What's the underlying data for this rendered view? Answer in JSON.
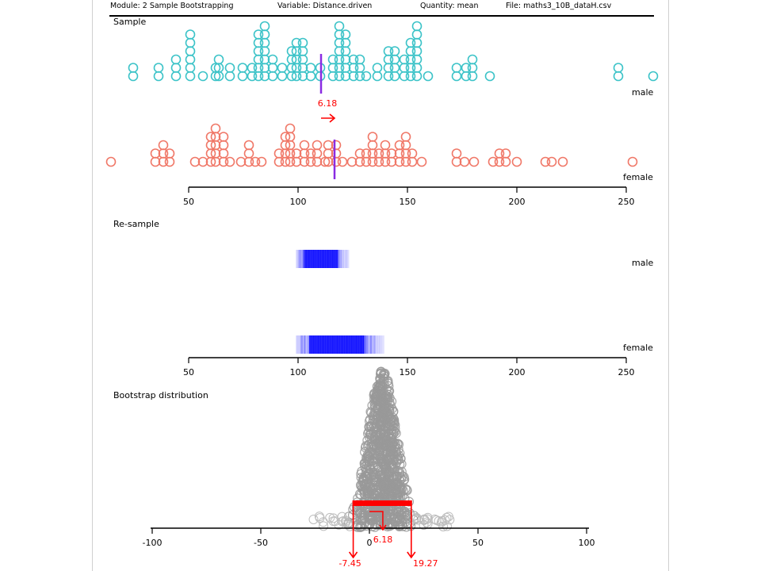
{
  "header": {
    "module": "Module: 2 Sample Bootstrapping",
    "variable": "Variable: Distance.driven",
    "quantity": "Quantity: mean",
    "file": "File: maths3_10B_dataH.csv"
  },
  "sample": {
    "title": "Sample",
    "groups": [
      "male",
      "female"
    ],
    "diff_label": "6.18",
    "male_mean": 111,
    "female_mean": 117,
    "colors": {
      "male": "#3cc3c8",
      "female": "#f07868",
      "mean": "#8a2be2",
      "arrow": "#ff0000"
    }
  },
  "resample": {
    "title": "Re-sample",
    "groups": [
      "male",
      "female"
    ],
    "male_range": [
      99,
      123
    ],
    "female_range": [
      99,
      139
    ],
    "color": "#0000ff"
  },
  "bootstrap": {
    "title": "Bootstrap distribution",
    "ci_lower_label": "-7.45",
    "ci_upper_label": "19.27",
    "observed_label": "6.18",
    "ci": [
      -7.45,
      19.27
    ],
    "observed": 6.18,
    "colors": {
      "points": "#999999",
      "ci": "#ff0000"
    }
  },
  "axes": {
    "value_axis": {
      "min": 50,
      "max": 250,
      "ticks": [
        "50",
        "100",
        "150",
        "200",
        "250"
      ]
    },
    "diff_axis": {
      "min": -100,
      "max": 100,
      "ticks": [
        "-100",
        "-50",
        "0",
        "50",
        "100"
      ]
    }
  }
}
